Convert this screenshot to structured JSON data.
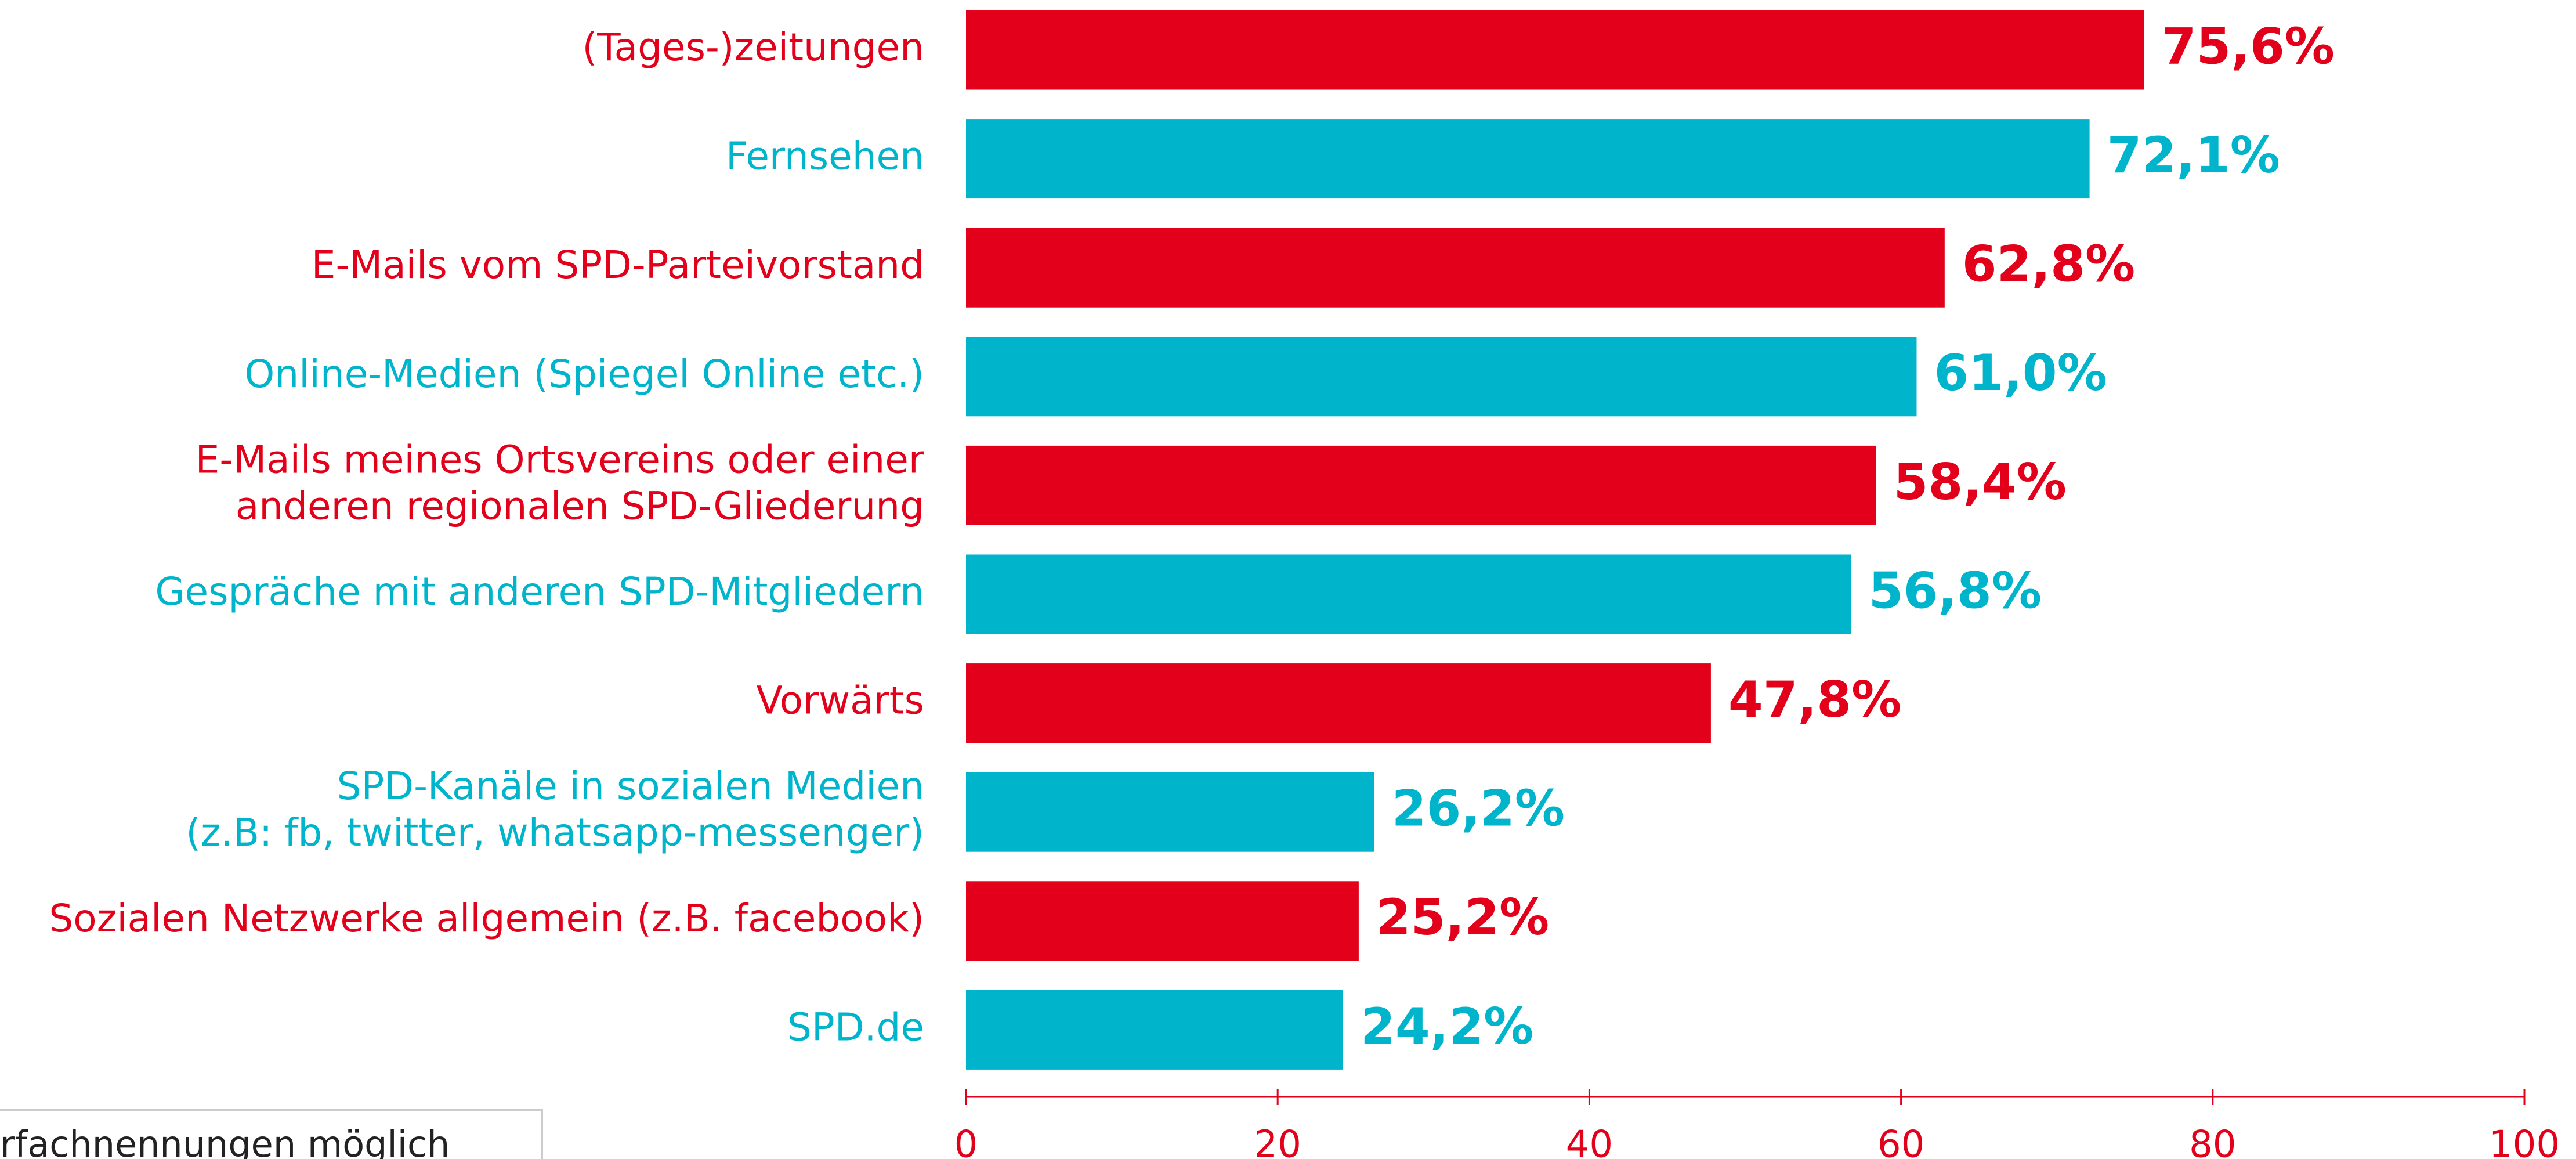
{
  "chart_data": {
    "type": "bar",
    "orientation": "horizontal",
    "categories": [
      "(Tages-)zeitungen",
      "Fernsehen",
      "E-Mails vom SPD-Parteivorstand",
      "Online-Medien (Spiegel Online etc.)",
      "E-Mails meines Ortsvereins oder einer\nanderen regionalen SPD-Gliederung",
      "Gespräche mit anderen SPD-Mitgliedern",
      "Vorwärts",
      "SPD-Kanäle in sozialen Medien\n(z.B: fb, twitter, whatsapp-messenger)",
      "Sozialen Netzwerke allgemein (z.B. facebook)",
      "SPD.de"
    ],
    "values": [
      75.6,
      72.1,
      62.8,
      61.0,
      58.4,
      56.8,
      47.8,
      26.2,
      25.2,
      24.2
    ],
    "value_labels": [
      "75,6%",
      "72,1%",
      "62,8%",
      "61,0%",
      "58,4%",
      "56,8%",
      "47,8%",
      "26,2%",
      "25,2%",
      "24,2%"
    ],
    "colors": [
      "#e2001a",
      "#00b4cc",
      "#e2001a",
      "#00b4cc",
      "#e2001a",
      "#00b4cc",
      "#e2001a",
      "#00b4cc",
      "#e2001a",
      "#00b4cc"
    ],
    "xlim": [
      0,
      100
    ],
    "xticks": [
      0,
      20,
      40,
      60,
      80,
      100
    ],
    "note": "rfachnennungen möglich"
  }
}
